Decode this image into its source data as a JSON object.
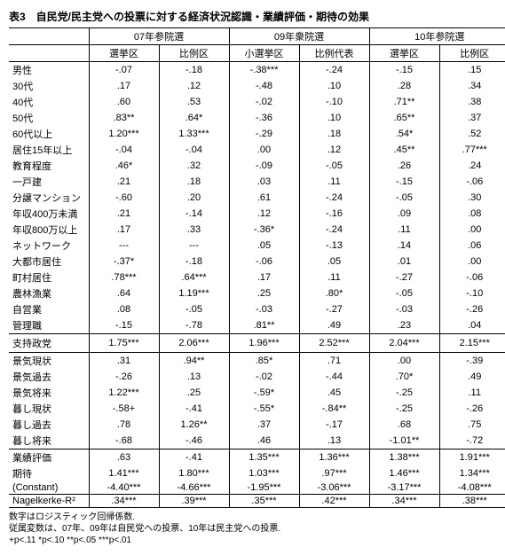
{
  "title": "表3　自民党/民主党への投票に対する経済状況認識・業績評価・期待の効果",
  "headers": {
    "g1": "07年参院選",
    "g2": "09年衆院選",
    "g3": "10年参院選",
    "c1": "選挙区",
    "c2": "比例区",
    "c3": "小選挙区",
    "c4": "比例代表",
    "c5": "選挙区",
    "c6": "比例区"
  },
  "rows": [
    {
      "l": "男性",
      "v": [
        "-.07",
        "-.18",
        "-.38***",
        "-.24",
        "-.15",
        ".15"
      ]
    },
    {
      "l": "30代",
      "v": [
        ".17",
        ".12",
        "-.48",
        ".10",
        ".28",
        ".34"
      ]
    },
    {
      "l": "40代",
      "v": [
        ".60",
        ".53",
        "-.02",
        "-.10",
        ".71**",
        ".38"
      ]
    },
    {
      "l": "50代",
      "v": [
        ".83**",
        ".64*",
        "-.36",
        ".10",
        ".65**",
        ".37"
      ]
    },
    {
      "l": "60代以上",
      "v": [
        "1.20***",
        "1.33***",
        "-.29",
        ".18",
        ".54*",
        ".52"
      ]
    },
    {
      "l": "居住15年以上",
      "v": [
        "-.04",
        "-.04",
        ".00",
        ".12",
        ".45**",
        ".77***"
      ]
    },
    {
      "l": "教育程度",
      "v": [
        ".46*",
        ".32",
        "-.09",
        "-.05",
        ".26",
        ".24"
      ]
    },
    {
      "l": "一戸建",
      "v": [
        ".21",
        ".18",
        ".03",
        ".11",
        "-.15",
        "-.06"
      ]
    },
    {
      "l": "分譲マンション",
      "v": [
        "-.60",
        ".20",
        ".61",
        "-.24",
        "-.05",
        ".30"
      ]
    },
    {
      "l": "年収400万未満",
      "v": [
        ".21",
        "-.14",
        ".12",
        "-.16",
        ".09",
        ".08"
      ]
    },
    {
      "l": "年収800万以上",
      "v": [
        ".17",
        ".33",
        "-.36*",
        "-.24",
        ".11",
        ".00"
      ]
    },
    {
      "l": "ネットワーク",
      "v": [
        "---",
        "---",
        ".05",
        "-.13",
        ".14",
        ".06"
      ]
    },
    {
      "l": "大都市居住",
      "v": [
        "-.37*",
        "-.18",
        "-.06",
        ".05",
        ".01",
        ".00"
      ]
    },
    {
      "l": "町村居住",
      "v": [
        ".78***",
        ".64***",
        ".17",
        ".11",
        "-.27",
        "-.06"
      ]
    },
    {
      "l": "農林漁業",
      "v": [
        ".64",
        "1.19***",
        ".25",
        ".80*",
        "-.05",
        "-.10"
      ]
    },
    {
      "l": "自営業",
      "v": [
        ".08",
        "-.05",
        "-.03",
        "-.27",
        "-.03",
        "-.26"
      ]
    },
    {
      "l": "管理職",
      "v": [
        "-.15",
        "-.78",
        ".81**",
        ".49",
        ".23",
        ".04"
      ]
    }
  ],
  "support": {
    "l": "支持政党",
    "v": [
      "1.75***",
      "2.06***",
      "1.96***",
      "2.52***",
      "2.04***",
      "2.15***"
    ]
  },
  "econ": [
    {
      "l": "景気現状",
      "v": [
        ".31",
        ".94**",
        ".85*",
        ".71",
        ".00",
        "-.39"
      ]
    },
    {
      "l": "景気過去",
      "v": [
        "-.26",
        ".13",
        "-.02",
        "-.44",
        ".70*",
        ".49"
      ]
    },
    {
      "l": "景気将来",
      "v": [
        "1.22***",
        ".25",
        "-.59*",
        ".45",
        "-.25",
        ".11"
      ]
    },
    {
      "l": "暮し現状",
      "v": [
        "-.58+",
        "-.41",
        "-.55*",
        "-.84**",
        "-.25",
        "-.26"
      ]
    },
    {
      "l": "暮し過去",
      "v": [
        ".78",
        "1.26**",
        ".37",
        "-.17",
        ".68",
        ".75"
      ]
    },
    {
      "l": "暮し将来",
      "v": [
        "-.68",
        "-.46",
        ".46",
        ".13",
        "-1.01**",
        "-.72"
      ]
    }
  ],
  "bottom": [
    {
      "l": "業績評価",
      "v": [
        ".63",
        "-.41",
        "1.35***",
        "1.36***",
        "1.38***",
        "1.91***"
      ]
    },
    {
      "l": "期待",
      "v": [
        "1.41***",
        "1.80***",
        "1.03***",
        ".97***",
        "1.46***",
        "1.34***"
      ]
    },
    {
      "l": "(Constant)",
      "v": [
        "-4.40***",
        "-4.66***",
        "-1.95***",
        "-3.06***",
        "-3.17***",
        "-4.08***"
      ]
    }
  ],
  "r2": {
    "l": "Nagelkerke-R²",
    "v": [
      ".34***",
      ".39***",
      ".35***",
      ".42***",
      ".34***",
      ".38***"
    ]
  },
  "notes": [
    "数字はロジスティック回帰係数.",
    "従属変数は、07年、09年は自民党への投票、10年は民主党への投票.",
    "+p<.11  *p<.10  **p<.05  ***p<.01"
  ]
}
